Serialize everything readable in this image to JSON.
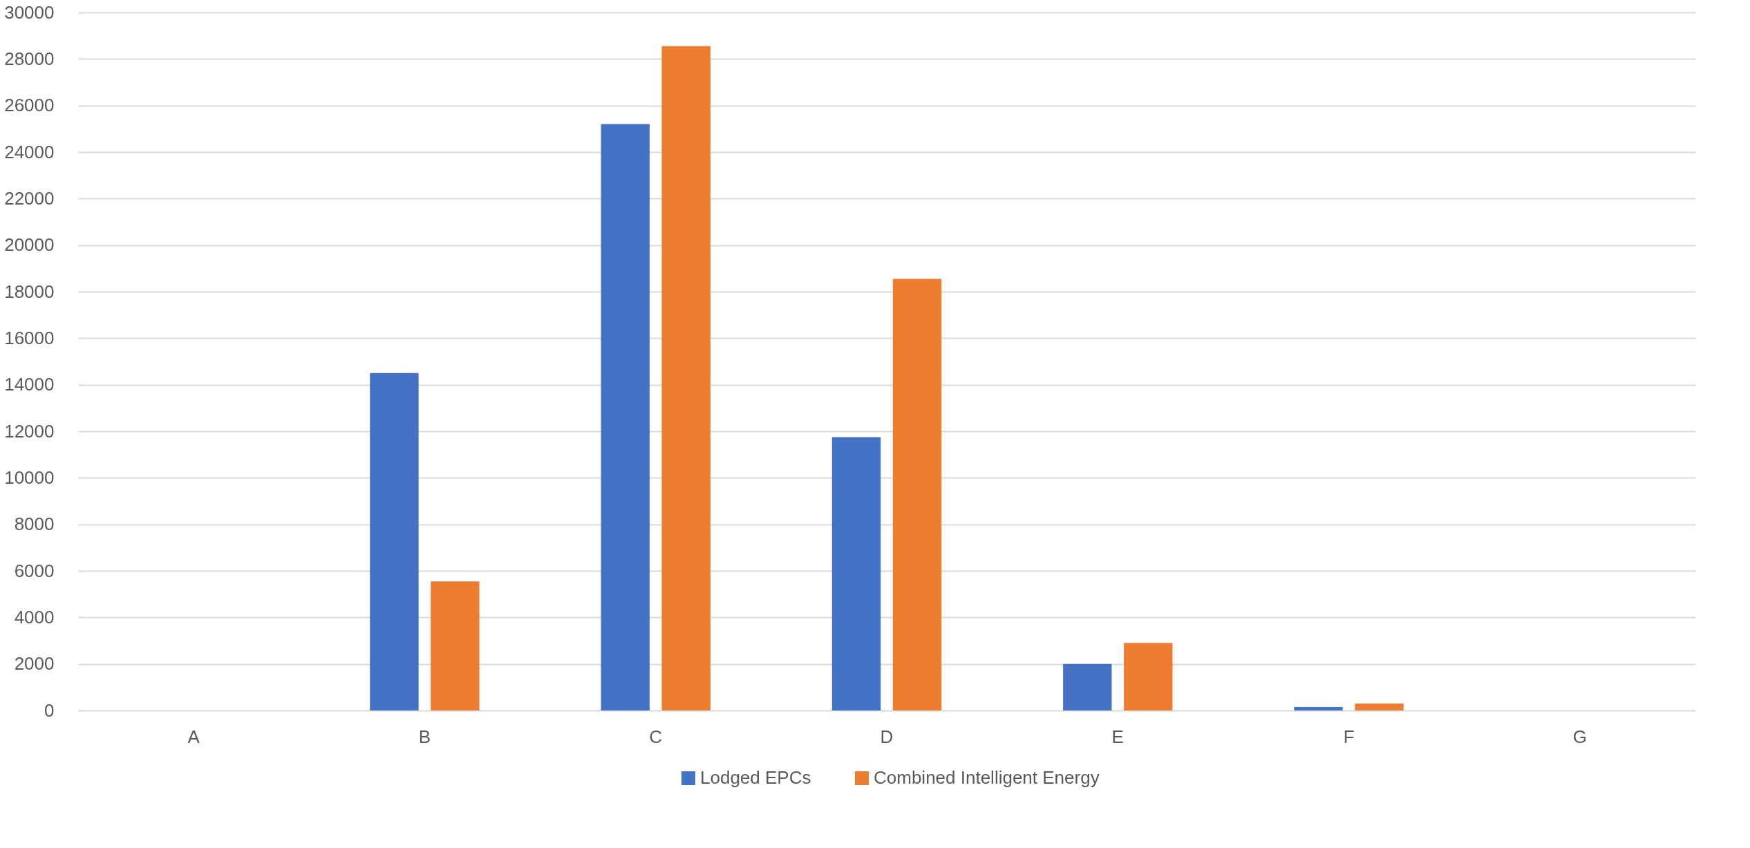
{
  "chart_data": {
    "type": "bar",
    "categories": [
      "A",
      "B",
      "C",
      "D",
      "E",
      "F",
      "G"
    ],
    "series": [
      {
        "name": "Lodged EPCs",
        "color": "#4472c4",
        "values": [
          0,
          14500,
          25200,
          11750,
          2000,
          150,
          0
        ]
      },
      {
        "name": "Combined Intelligent Energy",
        "color": "#ed7d31",
        "values": [
          0,
          5550,
          28550,
          18550,
          2900,
          300,
          0
        ]
      }
    ],
    "ylim": [
      0,
      30000
    ],
    "yticks": [
      0,
      2000,
      4000,
      6000,
      8000,
      10000,
      12000,
      14000,
      16000,
      18000,
      20000,
      22000,
      24000,
      26000,
      28000,
      30000
    ],
    "grid": "y",
    "legend": "bottom"
  }
}
